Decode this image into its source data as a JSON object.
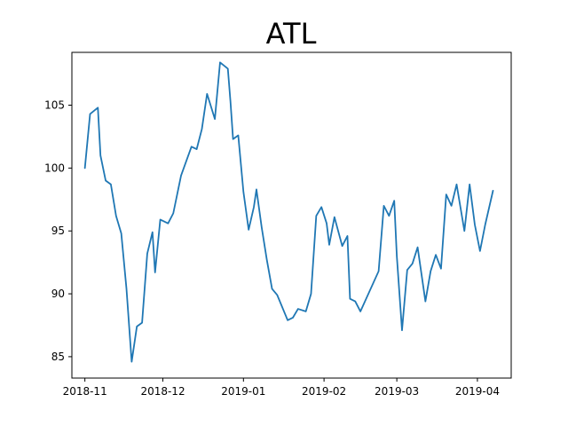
{
  "chart_data": {
    "type": "line",
    "title": "ATL",
    "xlabel": "",
    "ylabel": "",
    "grid": false,
    "legend": "none",
    "xlim": [
      "2018-10-27",
      "2019-04-14"
    ],
    "ylim": [
      83.3,
      109.2
    ],
    "x_ticks": [
      "2018-11-01",
      "2018-12-01",
      "2019-01-01",
      "2019-02-01",
      "2019-03-01",
      "2019-04-01"
    ],
    "x_tick_labels": [
      "2018-11",
      "2018-12",
      "2019-01",
      "2019-02",
      "2019-03",
      "2019-04"
    ],
    "y_ticks": [
      85,
      90,
      95,
      100,
      105
    ],
    "y_tick_labels": [
      "85",
      "90",
      "95",
      "100",
      "105"
    ],
    "series": [
      {
        "color": "#1f77b4",
        "x": [
          "2018-11-01",
          "2018-11-03",
          "2018-11-06",
          "2018-11-07",
          "2018-11-09",
          "2018-11-11",
          "2018-11-13",
          "2018-11-15",
          "2018-11-17",
          "2018-11-19",
          "2018-11-21",
          "2018-11-23",
          "2018-11-25",
          "2018-11-27",
          "2018-11-28",
          "2018-11-30",
          "2018-12-03",
          "2018-12-05",
          "2018-12-08",
          "2018-12-12",
          "2018-12-14",
          "2018-12-16",
          "2018-12-18",
          "2018-12-21",
          "2018-12-23",
          "2018-12-26",
          "2018-12-27",
          "2018-12-28",
          "2018-12-30",
          "2019-01-01",
          "2019-01-03",
          "2019-01-05",
          "2019-01-06",
          "2019-01-08",
          "2019-01-10",
          "2019-01-12",
          "2019-01-14",
          "2019-01-18",
          "2019-01-20",
          "2019-01-22",
          "2019-01-25",
          "2019-01-27",
          "2019-01-29",
          "2019-01-31",
          "2019-02-02",
          "2019-02-03",
          "2019-02-05",
          "2019-02-08",
          "2019-02-10",
          "2019-02-11",
          "2019-02-13",
          "2019-02-15",
          "2019-02-22",
          "2019-02-24",
          "2019-02-26",
          "2019-02-28",
          "2019-03-01",
          "2019-03-03",
          "2019-03-05",
          "2019-03-07",
          "2019-03-09",
          "2019-03-12",
          "2019-03-14",
          "2019-03-16",
          "2019-03-18",
          "2019-03-20",
          "2019-03-22",
          "2019-03-24",
          "2019-03-27",
          "2019-03-29",
          "2019-03-31",
          "2019-04-02",
          "2019-04-04",
          "2019-04-07"
        ],
        "y": [
          100.0,
          104.3,
          104.8,
          101.0,
          99.0,
          98.7,
          96.2,
          94.8,
          90.4,
          84.6,
          87.4,
          87.7,
          93.2,
          94.9,
          91.7,
          95.9,
          95.6,
          96.4,
          99.4,
          101.7,
          101.5,
          103.1,
          105.9,
          103.9,
          108.4,
          107.9,
          105.3,
          102.3,
          102.6,
          98.1,
          95.1,
          96.9,
          98.3,
          95.3,
          92.7,
          90.4,
          89.9,
          87.9,
          88.1,
          88.8,
          88.6,
          90.0,
          96.2,
          96.9,
          95.6,
          93.9,
          96.1,
          93.8,
          94.6,
          89.6,
          89.4,
          88.6,
          91.8,
          97.0,
          96.2,
          97.4,
          93.0,
          87.1,
          91.9,
          92.4,
          93.7,
          89.4,
          91.8,
          93.1,
          92.0,
          97.9,
          97.0,
          98.7,
          95.0,
          98.7,
          95.5,
          93.4,
          95.5,
          98.2
        ]
      }
    ]
  }
}
